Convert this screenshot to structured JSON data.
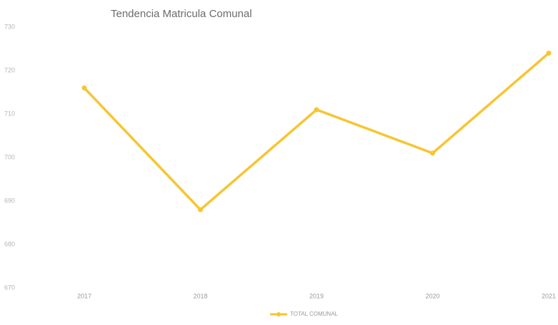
{
  "chart_data": {
    "type": "line",
    "title": "Tendencia  Matricula Comunal",
    "categories": [
      "2017",
      "2018",
      "2019",
      "2020",
      "2021"
    ],
    "series": [
      {
        "name": "TOTAL COMUNAL",
        "color": "#f7c531",
        "values": [
          716,
          688,
          711,
          701,
          724
        ]
      }
    ],
    "ylim": [
      670,
      730
    ],
    "yticks": [
      670,
      680,
      690,
      700,
      710,
      720,
      730
    ],
    "grid": false,
    "legend": "bottom"
  }
}
